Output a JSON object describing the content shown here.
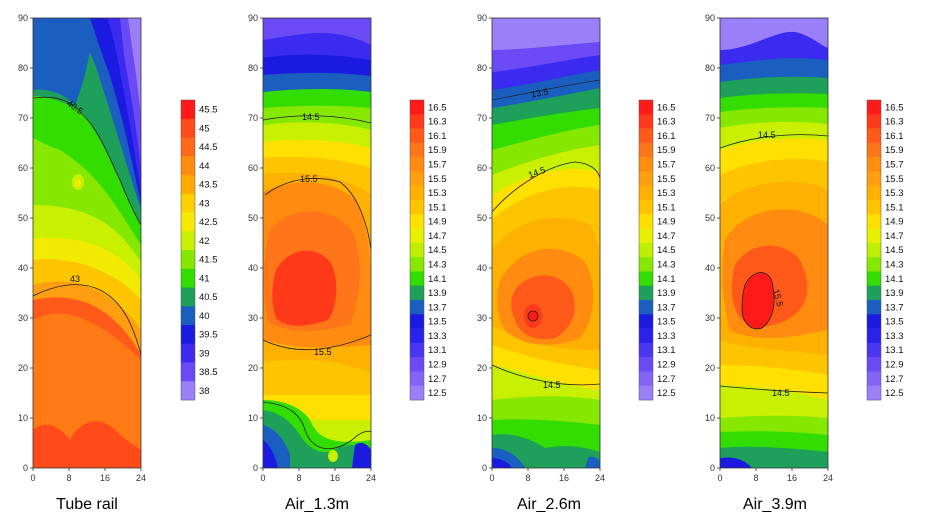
{
  "chart_data": [
    {
      "type": "heatmap",
      "title": "Tube rail",
      "xticks": [
        "0",
        "8",
        "16",
        "24"
      ],
      "yticks": [
        "0",
        "10",
        "20",
        "30",
        "40",
        "50",
        "60",
        "70",
        "80",
        "90"
      ],
      "xlim": [
        0,
        24
      ],
      "ylim": [
        0,
        90
      ],
      "colorbar": [
        "45.5",
        "45",
        "44.5",
        "44",
        "43.5",
        "43",
        "42.5",
        "42",
        "41.5",
        "41",
        "40.5",
        "40",
        "39.5",
        "39",
        "38.5",
        "38"
      ],
      "colorbar_colors": [
        "#ff1a1a",
        "#ff4a1a",
        "#ff6a1a",
        "#ff8c10",
        "#ffaa00",
        "#ffd000",
        "#f5ea00",
        "#c8f000",
        "#86e800",
        "#33dd00",
        "#1ea05a",
        "#1a5fbf",
        "#1a1ae0",
        "#3b2af0",
        "#6a4af5",
        "#9a7ff8"
      ],
      "contour_labels": [
        "40.5",
        "43"
      ],
      "hot_spots": [
        {
          "x": 9,
          "y": 57,
          "value": 43
        }
      ]
    },
    {
      "type": "heatmap",
      "title": "Air_1.3m",
      "xticks": [
        "0",
        "8",
        "16",
        "24"
      ],
      "yticks": [
        "0",
        "10",
        "20",
        "30",
        "40",
        "50",
        "60",
        "70",
        "80",
        "90"
      ],
      "xlim": [
        0,
        24
      ],
      "ylim": [
        0,
        90
      ],
      "colorbar": [
        "16.5",
        "16.3",
        "16.1",
        "15.9",
        "15.7",
        "15.5",
        "15.3",
        "15.1",
        "14.9",
        "14.7",
        "14.5",
        "14.3",
        "14.1",
        "13.9",
        "13.7",
        "13.5",
        "13.3",
        "13.1",
        "12.9",
        "12.7",
        "12.5"
      ],
      "colorbar_colors": [
        "#ff1a1a",
        "#ff3a1a",
        "#ff5a1a",
        "#ff761a",
        "#ff8c10",
        "#ff9e10",
        "#ffb000",
        "#ffc400",
        "#ffe000",
        "#e8f000",
        "#c0ee00",
        "#86e800",
        "#33dd00",
        "#1ea05a",
        "#1a5fbf",
        "#1a1ae0",
        "#2a22ea",
        "#4a35f0",
        "#6a4af5",
        "#8464f7",
        "#9a7ff8"
      ],
      "contour_labels": [
        "14.5",
        "15.5",
        "15.5"
      ],
      "hot_spots": [
        {
          "x": 8,
          "y": 35,
          "value": 16.1
        }
      ]
    },
    {
      "type": "heatmap",
      "title": "Air_2.6m",
      "xticks": [
        "0",
        "8",
        "16",
        "24"
      ],
      "yticks": [
        "0",
        "10",
        "20",
        "30",
        "40",
        "50",
        "60",
        "70",
        "80",
        "90"
      ],
      "xlim": [
        0,
        24
      ],
      "ylim": [
        0,
        90
      ],
      "colorbar": [
        "16.5",
        "16.3",
        "16.1",
        "15.9",
        "15.7",
        "15.5",
        "15.3",
        "15.1",
        "14.9",
        "14.7",
        "14.5",
        "14.3",
        "14.1",
        "13.9",
        "13.7",
        "13.5",
        "13.3",
        "13.1",
        "12.9",
        "12.7",
        "12.5"
      ],
      "colorbar_colors": [
        "#ff1a1a",
        "#ff3a1a",
        "#ff5a1a",
        "#ff761a",
        "#ff8c10",
        "#ff9e10",
        "#ffb000",
        "#ffc400",
        "#ffe000",
        "#e8f000",
        "#c0ee00",
        "#86e800",
        "#33dd00",
        "#1ea05a",
        "#1a5fbf",
        "#1a1ae0",
        "#2a22ea",
        "#4a35f0",
        "#6a4af5",
        "#8464f7",
        "#9a7ff8"
      ],
      "contour_labels": [
        "13.5",
        "14.5",
        "14.5"
      ],
      "hot_spots": [
        {
          "x": 9,
          "y": 30,
          "value": 16.1
        }
      ]
    },
    {
      "type": "heatmap",
      "title": "Air_3.9m",
      "xticks": [
        "0",
        "8",
        "16",
        "24"
      ],
      "yticks": [
        "0",
        "10",
        "20",
        "30",
        "40",
        "50",
        "60",
        "70",
        "80",
        "90"
      ],
      "xlim": [
        0,
        24
      ],
      "ylim": [
        0,
        90
      ],
      "colorbar": [
        "16.5",
        "16.3",
        "16.1",
        "15.9",
        "15.7",
        "15.5",
        "15.3",
        "15.1",
        "14.9",
        "14.7",
        "14.5",
        "14.3",
        "14.1",
        "13.9",
        "13.7",
        "13.5",
        "13.3",
        "13.1",
        "12.9",
        "12.7",
        "12.5"
      ],
      "colorbar_colors": [
        "#ff1a1a",
        "#ff3a1a",
        "#ff5a1a",
        "#ff761a",
        "#ff8c10",
        "#ff9e10",
        "#ffb000",
        "#ffc400",
        "#ffe000",
        "#e8f000",
        "#c0ee00",
        "#86e800",
        "#33dd00",
        "#1ea05a",
        "#1a5fbf",
        "#1a1ae0",
        "#2a22ea",
        "#4a35f0",
        "#6a4af5",
        "#8464f7",
        "#9a7ff8"
      ],
      "contour_labels": [
        "14.5",
        "15.5",
        "14.5"
      ],
      "hot_spots": [
        {
          "x": 10,
          "y": 34,
          "value": 15.5
        }
      ]
    }
  ]
}
